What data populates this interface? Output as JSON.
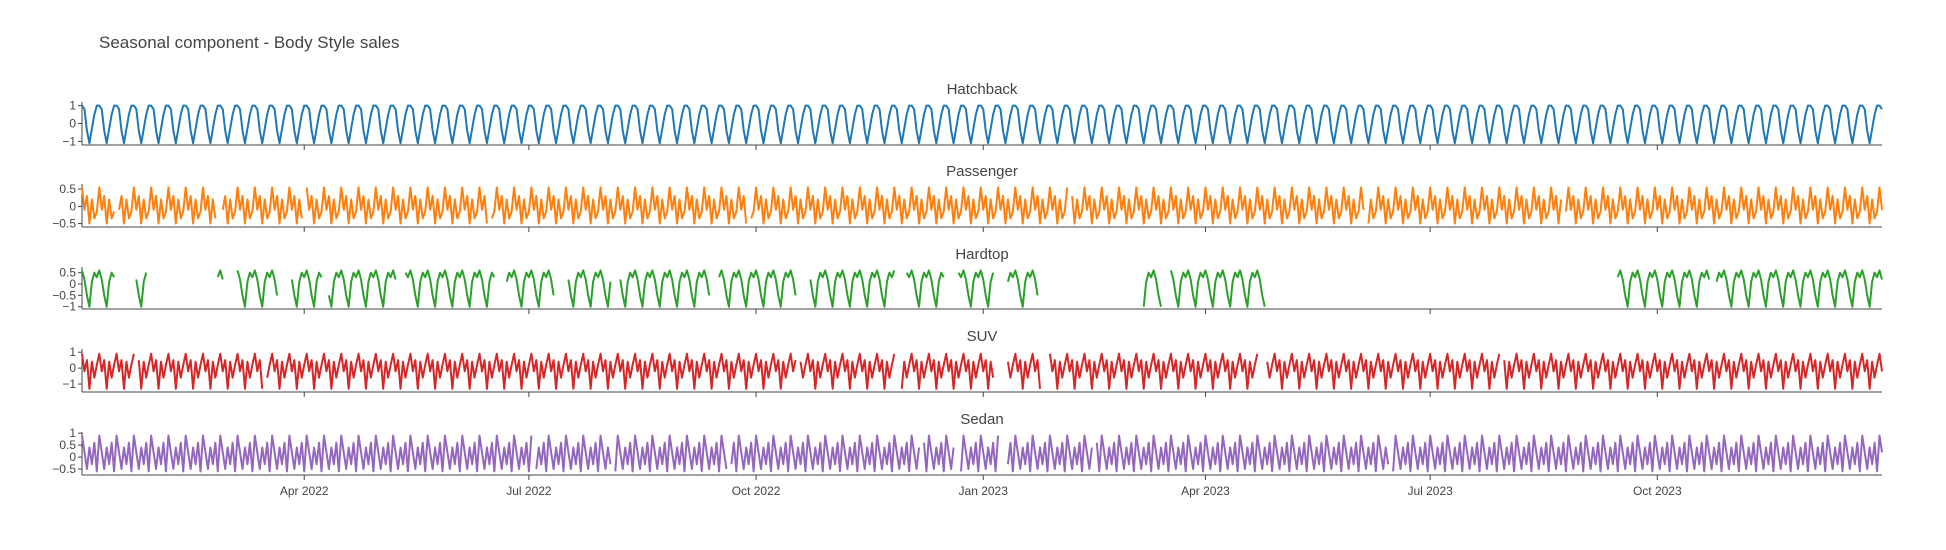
{
  "chart_data": {
    "type": "line",
    "title": "Seasonal component - Body Style sales",
    "x_range": [
      "2022-01-01",
      "2023-12-31"
    ],
    "x_ticks": [
      {
        "date": "2022-04-01",
        "label": "Apr 2022"
      },
      {
        "date": "2022-07-01",
        "label": "Jul 2022"
      },
      {
        "date": "2022-10-01",
        "label": "Oct 2022"
      },
      {
        "date": "2023-01-01",
        "label": "Jan 2023"
      },
      {
        "date": "2023-04-01",
        "label": "Apr 2023"
      },
      {
        "date": "2023-07-01",
        "label": "Jul 2023"
      },
      {
        "date": "2023-10-01",
        "label": "Oct 2023"
      }
    ],
    "grid": false,
    "panels": [
      {
        "title": "Hatchback",
        "color": "#1f77b4",
        "ylim": [
          -1.2,
          1.2
        ],
        "yticks": [
          -1,
          0,
          1
        ],
        "ytick_labels": [
          "−1",
          "0",
          "1"
        ],
        "pattern": [
          1.0,
          0.8,
          -0.4,
          -1.1,
          -0.3,
          0.5,
          1.0
        ],
        "gaps": []
      },
      {
        "title": "Passenger",
        "color": "#ff7f0e",
        "ylim": [
          -0.6,
          0.65
        ],
        "yticks": [
          -0.5,
          0,
          0.5
        ],
        "ytick_labels": [
          "−0.5",
          "0",
          "0.5"
        ],
        "pattern": [
          0.55,
          -0.1,
          0.3,
          -0.5,
          0.2,
          -0.35,
          -0.15
        ],
        "gaps": [
          [
            14,
            15
          ],
          [
            55,
            57
          ],
          [
            90,
            91
          ],
          [
            165,
            166
          ],
          [
            270,
            271
          ],
          [
            400,
            401
          ],
          [
            520,
            521
          ],
          [
            600,
            601
          ]
        ]
      },
      {
        "title": "Hardtop",
        "color": "#2ca02c",
        "ylim": [
          -1.1,
          0.75
        ],
        "yticks": [
          -1,
          -0.5,
          0,
          0.5
        ],
        "ytick_labels": [
          "−1",
          "−0.5",
          "0",
          "0.5"
        ],
        "pattern": [
          0.6,
          0.2,
          -0.5,
          -1.0,
          0.1,
          0.5,
          0.3
        ],
        "gaps": [
          [
            14,
            22
          ],
          [
            27,
            55
          ],
          [
            58,
            63
          ],
          [
            80,
            85
          ],
          [
            98,
            100
          ],
          [
            128,
            131
          ],
          [
            168,
            172
          ],
          [
            192,
            197
          ],
          [
            215,
            218
          ],
          [
            255,
            258
          ],
          [
            290,
            295
          ],
          [
            330,
            334
          ],
          [
            350,
            355
          ],
          [
            370,
            375
          ],
          [
            388,
            430
          ],
          [
            438,
            441
          ],
          [
            480,
            622
          ],
          [
            660,
            662
          ]
        ]
      },
      {
        "title": "SUV",
        "color": "#d62728",
        "ylim": [
          -1.5,
          1.2
        ],
        "yticks": [
          -1,
          0,
          1
        ],
        "ytick_labels": [
          "−1",
          "0",
          "1"
        ],
        "pattern": [
          0.9,
          -0.2,
          0.5,
          -1.3,
          0.4,
          -0.6,
          0.2
        ],
        "gaps": [
          [
            22,
            23
          ],
          [
            74,
            75
          ],
          [
            290,
            291
          ],
          [
            330,
            332
          ],
          [
            370,
            375
          ],
          [
            389,
            392
          ],
          [
            477,
            480
          ],
          [
            575,
            576
          ]
        ]
      },
      {
        "title": "Sedan",
        "color": "#9467bd",
        "ylim": [
          -0.75,
          1.05
        ],
        "yticks": [
          -0.5,
          0,
          0.5,
          1
        ],
        "ytick_labels": [
          "−0.5",
          "0",
          "0.5",
          "1"
        ],
        "pattern": [
          0.9,
          0.2,
          -0.5,
          0.4,
          -0.3,
          0.6,
          -0.6
        ],
        "gaps": [
          [
            183,
            184
          ],
          [
            215,
            216
          ],
          [
            262,
            263
          ],
          [
            340,
            341
          ],
          [
            354,
            356
          ],
          [
            372,
            375
          ],
          [
            410,
            411
          ],
          [
            530,
            531
          ]
        ]
      }
    ]
  }
}
